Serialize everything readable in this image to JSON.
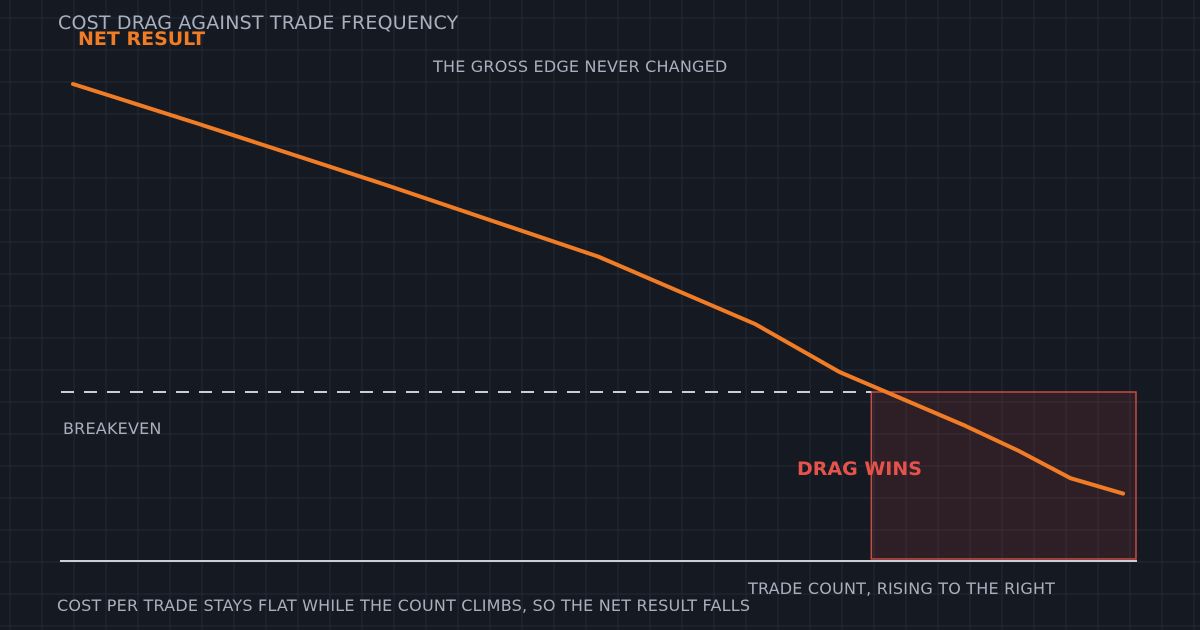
{
  "chart_data": {
    "type": "line",
    "title": "COST DRAG AGAINST TRADE FREQUENCY",
    "series": [
      {
        "name": "NET RESULT",
        "color": "#f07c26",
        "points": [
          [
            0,
            100
          ],
          [
            12,
            87
          ],
          [
            30,
            67
          ],
          [
            50,
            44
          ],
          [
            65,
            22
          ],
          [
            73,
            6.5
          ],
          [
            85,
            -11
          ],
          [
            90,
            -19
          ],
          [
            95,
            -28
          ],
          [
            100,
            -33
          ]
        ]
      }
    ],
    "xlabel": "TRADE COUNT, RISING TO THE RIGHT",
    "ylabel": "",
    "annotations": {
      "top_note": "THE GROSS EDGE NEVER CHANGED",
      "baseline_label": "BREAKEVEN",
      "zone_label": "DRAG WINS",
      "zone_color": "#e5534b"
    },
    "caption": "COST PER TRADE STAYS FLAT WHILE THE COUNT CLIMBS, SO THE NET RESULT FALLS",
    "breakeven": 0,
    "xlim": [
      0,
      100
    ],
    "ylim": [
      -40,
      100
    ],
    "grid": true,
    "legend": "none"
  }
}
